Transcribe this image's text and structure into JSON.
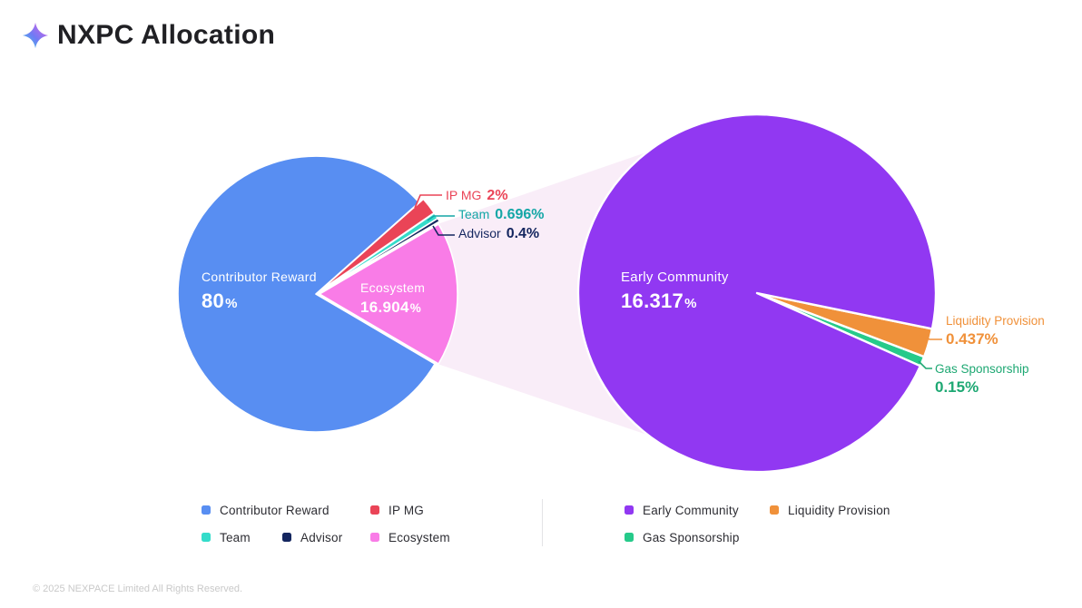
{
  "header": {
    "title": "NXPC Allocation",
    "icon": "sparkle-icon"
  },
  "colors": {
    "contributor_reward": "#588ef2",
    "ip_mg": "#ea4457",
    "team": "#34dcca",
    "team_text": "#13a6a6",
    "advisor": "#14265f",
    "ecosystem": "#f97ce7",
    "early_community": "#9138f2",
    "liquidity_provision": "#f0913a",
    "gas_sponsorship": "#26ca8a",
    "gas_text": "#1ea873",
    "beam": "#f9edf8",
    "title": "#202024",
    "legend_text": "#2d2d33",
    "footer_text": "#c9c9c9"
  },
  "chart_data": [
    {
      "id": "main-allocation",
      "type": "pie",
      "units": "%",
      "slices": [
        {
          "label": "Contributor Reward",
          "value": 80,
          "display": "80%",
          "color_key": "contributor_reward"
        },
        {
          "label": "IP MG",
          "value": 2,
          "display": "2%",
          "color_key": "ip_mg"
        },
        {
          "label": "Team",
          "value": 0.696,
          "display": "0.696%",
          "color_key": "team"
        },
        {
          "label": "Advisor",
          "value": 0.4,
          "display": "0.4%",
          "color_key": "advisor"
        },
        {
          "label": "Ecosystem",
          "value": 16.904,
          "display": "16.904%",
          "color_key": "ecosystem"
        }
      ]
    },
    {
      "id": "ecosystem-breakdown",
      "type": "pie",
      "units": "%",
      "slices": [
        {
          "label": "Early Community",
          "value": 16.317,
          "display": "16.317%",
          "color_key": "early_community"
        },
        {
          "label": "Liquidity Provision",
          "value": 0.437,
          "display": "0.437%",
          "color_key": "liquidity_provision"
        },
        {
          "label": "Gas Sponsorship",
          "value": 0.15,
          "display": "0.15%",
          "color_key": "gas_sponsorship"
        }
      ]
    }
  ],
  "labels": {
    "contributor_reward": {
      "name": "Contributor Reward",
      "value": "80",
      "unit": "%"
    },
    "ecosystem": {
      "name": "Ecosystem",
      "value": "16.904",
      "unit": "%"
    },
    "early_community": {
      "name": "Early Community",
      "value": "16.317",
      "unit": "%"
    },
    "ip_mg": {
      "name": "IP MG",
      "value": "2%"
    },
    "team": {
      "name": "Team",
      "value": "0.696%"
    },
    "advisor": {
      "name": "Advisor",
      "value": "0.4%"
    },
    "liquidity_provision": {
      "name": "Liquidity Provision",
      "value": "0.437%"
    },
    "gas_sponsorship": {
      "name": "Gas Sponsorship",
      "value": "0.15%"
    }
  },
  "legend": {
    "groups": [
      {
        "items": [
          {
            "label": "Contributor Reward",
            "color_key": "contributor_reward"
          },
          {
            "label": "IP MG",
            "color_key": "ip_mg"
          },
          {
            "label": "Team",
            "color_key": "team"
          },
          {
            "label": "Advisor",
            "color_key": "advisor"
          },
          {
            "label": "Ecosystem",
            "color_key": "ecosystem"
          }
        ]
      },
      {
        "items": [
          {
            "label": "Early Community",
            "color_key": "early_community"
          },
          {
            "label": "Liquidity Provision",
            "color_key": "liquidity_provision"
          },
          {
            "label": "Gas Sponsorship",
            "color_key": "gas_sponsorship"
          }
        ]
      }
    ]
  },
  "footer": {
    "copyright": "© 2025 NEXPACE Limited All Rights Reserved."
  }
}
